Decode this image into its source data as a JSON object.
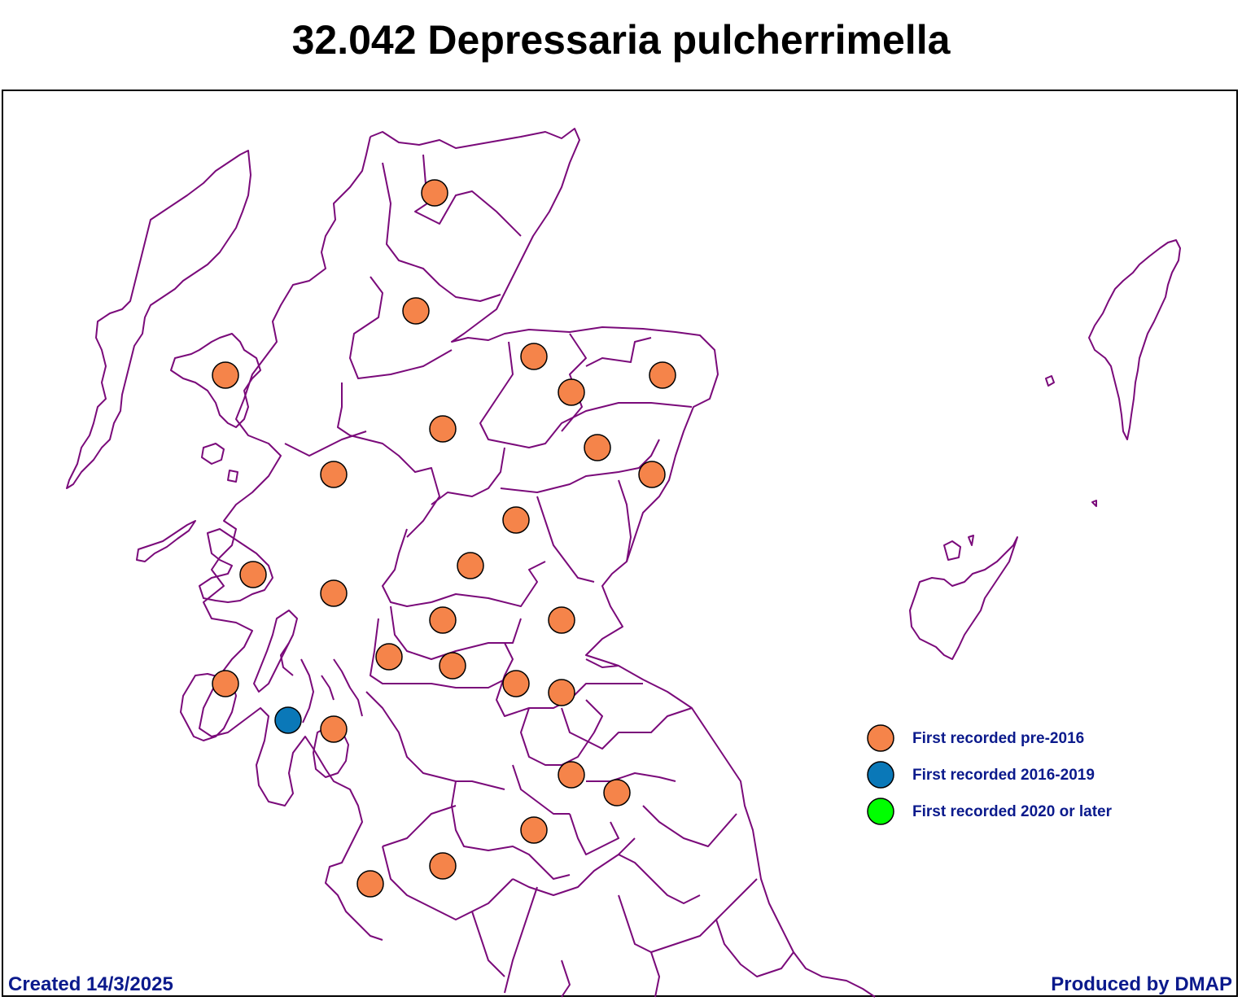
{
  "title": "32.042 Depressaria pulcherrimella",
  "footer": {
    "created": "Created 14/3/2025",
    "produced": "Produced by DMAP"
  },
  "colors": {
    "boundary": "#7a0a7a",
    "pre2016": "#f5844a",
    "y2016_2019": "#0a78b8",
    "y2020_later": "#00ff00",
    "footer_text": "#0b1a8c"
  },
  "legend": [
    {
      "label": "First recorded pre-2016",
      "category": "pre2016"
    },
    {
      "label": "First recorded 2016-2019",
      "category": "y2016_2019"
    },
    {
      "label": "First recorded 2020 or later",
      "category": "y2020_later"
    }
  ]
}
